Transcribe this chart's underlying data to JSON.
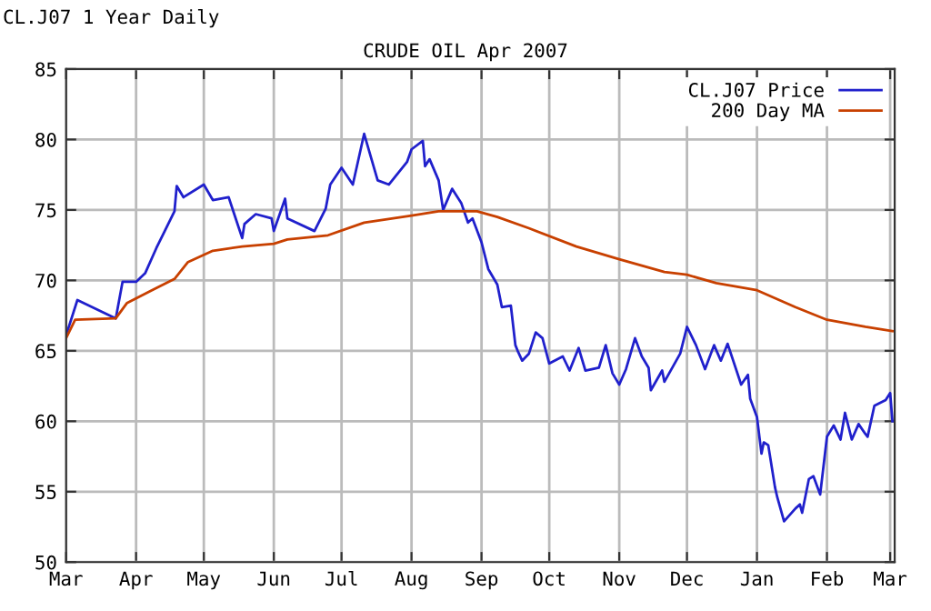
{
  "chart_data": {
    "type": "line",
    "title": "CRUDE OIL Apr 2007",
    "subtitle": "CL.J07 1 Year Daily",
    "xlim": [
      "2006-03-01",
      "2007-03-03"
    ],
    "xticks": [
      {
        "value": "2006-03-01",
        "label": "Mar"
      },
      {
        "value": "2006-04-01",
        "label": "Apr"
      },
      {
        "value": "2006-05-01",
        "label": "May"
      },
      {
        "value": "2006-06-01",
        "label": "Jun"
      },
      {
        "value": "2006-07-01",
        "label": "Jul"
      },
      {
        "value": "2006-08-01",
        "label": "Aug"
      },
      {
        "value": "2006-09-01",
        "label": "Sep"
      },
      {
        "value": "2006-10-01",
        "label": "Oct"
      },
      {
        "value": "2006-11-01",
        "label": "Nov"
      },
      {
        "value": "2006-12-01",
        "label": "Dec"
      },
      {
        "value": "2007-01-01",
        "label": "Jan"
      },
      {
        "value": "2007-02-01",
        "label": "Feb"
      },
      {
        "value": "2007-03-01",
        "label": "Mar"
      }
    ],
    "ylim": [
      50,
      85
    ],
    "yticks": [
      50,
      55,
      60,
      65,
      70,
      75,
      80,
      85
    ],
    "grid": true,
    "legend": "top right",
    "series": [
      {
        "name": "CL.J07 Price",
        "color": "#2020cc",
        "x": [
          "2006-03-01",
          "2006-03-06",
          "2006-03-23",
          "2006-03-26",
          "2006-04-01",
          "2006-04-05",
          "2006-04-10",
          "2006-04-18",
          "2006-04-19",
          "2006-04-22",
          "2006-05-01",
          "2006-05-05",
          "2006-05-12",
          "2006-05-18",
          "2006-05-19",
          "2006-05-24",
          "2006-05-31",
          "2006-06-01",
          "2006-06-06",
          "2006-06-07",
          "2006-06-19",
          "2006-06-24",
          "2006-06-26",
          "2006-07-01",
          "2006-07-06",
          "2006-07-11",
          "2006-07-17",
          "2006-07-22",
          "2006-07-30",
          "2006-08-01",
          "2006-08-06",
          "2006-08-07",
          "2006-08-09",
          "2006-08-13",
          "2006-08-15",
          "2006-08-19",
          "2006-08-23",
          "2006-08-26",
          "2006-08-28",
          "2006-09-01",
          "2006-09-04",
          "2006-09-08",
          "2006-09-10",
          "2006-09-14",
          "2006-09-16",
          "2006-09-17",
          "2006-09-19",
          "2006-09-22",
          "2006-09-25",
          "2006-09-28",
          "2006-10-01",
          "2006-10-07",
          "2006-10-10",
          "2006-10-14",
          "2006-10-17",
          "2006-10-23",
          "2006-10-26",
          "2006-10-29",
          "2006-11-01",
          "2006-11-04",
          "2006-11-08",
          "2006-11-11",
          "2006-11-14",
          "2006-11-15",
          "2006-11-20",
          "2006-11-21",
          "2006-11-28",
          "2006-12-01",
          "2006-12-05",
          "2006-12-09",
          "2006-12-13",
          "2006-12-16",
          "2006-12-19",
          "2006-12-25",
          "2006-12-28",
          "2006-12-29",
          "2007-01-01",
          "2007-01-03",
          "2007-01-04",
          "2007-01-06",
          "2007-01-09",
          "2007-01-10",
          "2007-01-13",
          "2007-01-18",
          "2007-01-20",
          "2007-01-21",
          "2007-01-24",
          "2007-01-26",
          "2007-01-29",
          "2007-02-01",
          "2007-02-04",
          "2007-02-07",
          "2007-02-09",
          "2007-02-12",
          "2007-02-15",
          "2007-02-18",
          "2007-02-19",
          "2007-02-22",
          "2007-02-27",
          "2007-03-01",
          "2007-03-02"
        ],
        "values": [
          66.1,
          68.6,
          67.3,
          69.9,
          69.9,
          70.5,
          72.3,
          74.9,
          76.7,
          75.9,
          76.8,
          75.7,
          75.9,
          73.0,
          74.0,
          74.7,
          74.4,
          73.5,
          75.8,
          74.4,
          73.5,
          75.1,
          76.8,
          78.0,
          76.8,
          80.4,
          77.1,
          76.8,
          78.4,
          79.3,
          79.9,
          78.1,
          78.6,
          77.1,
          75.0,
          76.5,
          75.5,
          74.1,
          74.4,
          72.7,
          70.8,
          69.7,
          68.1,
          68.2,
          65.4,
          65.0,
          64.3,
          64.8,
          66.3,
          65.9,
          64.1,
          64.6,
          63.6,
          65.2,
          63.6,
          63.8,
          65.4,
          63.4,
          62.6,
          63.7,
          65.9,
          64.6,
          63.8,
          62.2,
          63.6,
          62.8,
          64.8,
          66.7,
          65.4,
          63.7,
          65.4,
          64.3,
          65.5,
          62.6,
          63.3,
          61.6,
          60.3,
          57.7,
          58.5,
          58.3,
          55.3,
          54.6,
          52.9,
          53.8,
          54.1,
          53.5,
          55.9,
          56.1,
          54.8,
          58.9,
          59.7,
          58.7,
          60.6,
          58.7,
          59.8,
          59.1,
          58.9,
          61.1,
          61.5,
          62.0,
          60.0
        ]
      },
      {
        "name": "200 Day MA",
        "color": "#c84000",
        "x": [
          "2006-03-01",
          "2006-03-05",
          "2006-03-23",
          "2006-03-28",
          "2006-04-08",
          "2006-04-18",
          "2006-04-24",
          "2006-05-05",
          "2006-05-18",
          "2006-06-01",
          "2006-06-07",
          "2006-06-25",
          "2006-07-11",
          "2006-08-01",
          "2006-08-13",
          "2006-08-30",
          "2006-09-08",
          "2006-09-22",
          "2006-10-13",
          "2006-11-01",
          "2006-11-21",
          "2006-12-01",
          "2006-12-14",
          "2007-01-01",
          "2007-01-18",
          "2007-02-01",
          "2007-02-18",
          "2007-03-02"
        ],
        "values": [
          65.9,
          67.2,
          67.3,
          68.4,
          69.3,
          70.1,
          71.3,
          72.1,
          72.4,
          72.6,
          72.9,
          73.2,
          74.1,
          74.6,
          74.9,
          74.9,
          74.5,
          73.7,
          72.4,
          71.5,
          70.6,
          70.4,
          69.8,
          69.3,
          68.1,
          67.2,
          66.7,
          66.4
        ]
      }
    ]
  }
}
